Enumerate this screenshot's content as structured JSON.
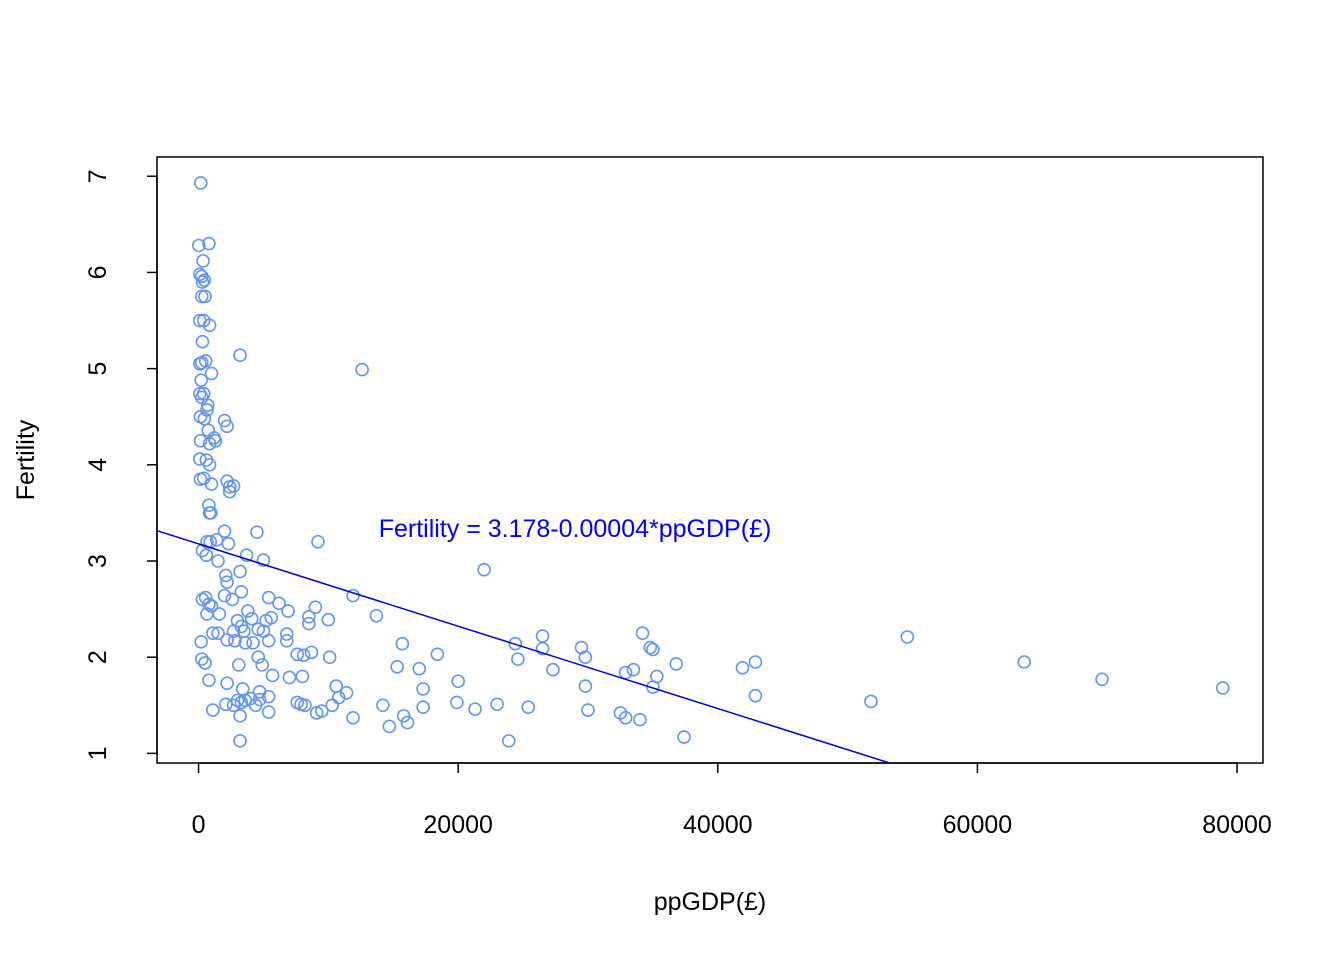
{
  "chart_data": {
    "type": "scatter",
    "title": "",
    "xlabel": "ppGDP(£)",
    "ylabel": "Fertility",
    "xlim": [
      -3200,
      82000
    ],
    "ylim": [
      0.9,
      7.2
    ],
    "xticks": [
      0,
      20000,
      40000,
      60000,
      80000
    ],
    "yticks": [
      1,
      2,
      3,
      4,
      5,
      6,
      7
    ],
    "xtick_labels": [
      "0",
      "20000",
      "40000",
      "60000",
      "80000"
    ],
    "ytick_labels": [
      "1",
      "2",
      "3",
      "4",
      "5",
      "6",
      "7"
    ],
    "grid": false,
    "point_color": "#6495ED",
    "line_color": "#0000CD",
    "annotation": {
      "text": "Fertility = 3.178-0.00004*ppGDP(£)",
      "color": "#0000FF",
      "x": 29000,
      "y": 3.25
    },
    "regression": {
      "intercept": 3.178,
      "slope": -4.28e-05
    },
    "points": [
      [
        170,
        6.93
      ],
      [
        20,
        6.28
      ],
      [
        800,
        6.3
      ],
      [
        350,
        6.12
      ],
      [
        100,
        5.98
      ],
      [
        250,
        5.96
      ],
      [
        450,
        5.92
      ],
      [
        300,
        5.9
      ],
      [
        250,
        5.75
      ],
      [
        500,
        5.75
      ],
      [
        100,
        5.5
      ],
      [
        400,
        5.5
      ],
      [
        850,
        5.45
      ],
      [
        300,
        5.28
      ],
      [
        3200,
        5.14
      ],
      [
        12600,
        4.99
      ],
      [
        100,
        5.05
      ],
      [
        250,
        5.06
      ],
      [
        550,
        5.08
      ],
      [
        1000,
        4.95
      ],
      [
        200,
        4.88
      ],
      [
        100,
        4.74
      ],
      [
        400,
        4.74
      ],
      [
        250,
        4.7
      ],
      [
        700,
        4.62
      ],
      [
        650,
        4.57
      ],
      [
        150,
        4.5
      ],
      [
        450,
        4.48
      ],
      [
        2000,
        4.46
      ],
      [
        2200,
        4.4
      ],
      [
        750,
        4.36
      ],
      [
        150,
        4.25
      ],
      [
        850,
        4.22
      ],
      [
        1200,
        4.28
      ],
      [
        1300,
        4.25
      ],
      [
        600,
        4.05
      ],
      [
        100,
        4.06
      ],
      [
        850,
        4.0
      ],
      [
        150,
        3.85
      ],
      [
        400,
        3.86
      ],
      [
        1000,
        3.8
      ],
      [
        2200,
        3.83
      ],
      [
        2400,
        3.77
      ],
      [
        2700,
        3.78
      ],
      [
        2400,
        3.72
      ],
      [
        800,
        3.58
      ],
      [
        850,
        3.5
      ],
      [
        950,
        3.5
      ],
      [
        4500,
        3.3
      ],
      [
        2000,
        3.31
      ],
      [
        9200,
        3.2
      ],
      [
        650,
        3.2
      ],
      [
        900,
        3.2
      ],
      [
        1400,
        3.22
      ],
      [
        2300,
        3.18
      ],
      [
        300,
        3.11
      ],
      [
        600,
        3.06
      ],
      [
        3700,
        3.06
      ],
      [
        5000,
        3.01
      ],
      [
        1500,
        3.0
      ],
      [
        22000,
        2.91
      ],
      [
        3200,
        2.89
      ],
      [
        2100,
        2.85
      ],
      [
        2200,
        2.78
      ],
      [
        3300,
        2.68
      ],
      [
        11900,
        2.64
      ],
      [
        2000,
        2.64
      ],
      [
        2600,
        2.6
      ],
      [
        300,
        2.6
      ],
      [
        550,
        2.62
      ],
      [
        5400,
        2.62
      ],
      [
        6200,
        2.56
      ],
      [
        800,
        2.55
      ],
      [
        1000,
        2.53
      ],
      [
        9000,
        2.52
      ],
      [
        3800,
        2.48
      ],
      [
        6900,
        2.48
      ],
      [
        650,
        2.45
      ],
      [
        1600,
        2.45
      ],
      [
        13700,
        2.43
      ],
      [
        4100,
        2.4
      ],
      [
        5600,
        2.41
      ],
      [
        8500,
        2.42
      ],
      [
        10000,
        2.39
      ],
      [
        3000,
        2.38
      ],
      [
        3300,
        2.32
      ],
      [
        5200,
        2.38
      ],
      [
        8500,
        2.35
      ],
      [
        3500,
        2.27
      ],
      [
        4600,
        2.29
      ],
      [
        5000,
        2.27
      ],
      [
        1100,
        2.25
      ],
      [
        1500,
        2.25
      ],
      [
        2700,
        2.27
      ],
      [
        6800,
        2.24
      ],
      [
        34200,
        2.25
      ],
      [
        26500,
        2.22
      ],
      [
        6800,
        2.17
      ],
      [
        2200,
        2.18
      ],
      [
        2800,
        2.17
      ],
      [
        3600,
        2.15
      ],
      [
        4200,
        2.15
      ],
      [
        5400,
        2.17
      ],
      [
        200,
        2.16
      ],
      [
        15700,
        2.14
      ],
      [
        24400,
        2.14
      ],
      [
        29500,
        2.1
      ],
      [
        34800,
        2.1
      ],
      [
        35000,
        2.08
      ],
      [
        54600,
        2.21
      ],
      [
        26500,
        2.09
      ],
      [
        8700,
        2.05
      ],
      [
        7600,
        2.03
      ],
      [
        8100,
        2.02
      ],
      [
        10100,
        2.0
      ],
      [
        18400,
        2.03
      ],
      [
        4600,
        2.0
      ],
      [
        29800,
        2.0
      ],
      [
        24600,
        1.98
      ],
      [
        250,
        1.98
      ],
      [
        500,
        1.94
      ],
      [
        3100,
        1.92
      ],
      [
        4900,
        1.92
      ],
      [
        15300,
        1.9
      ],
      [
        36800,
        1.93
      ],
      [
        42900,
        1.95
      ],
      [
        63600,
        1.95
      ],
      [
        41900,
        1.89
      ],
      [
        17000,
        1.88
      ],
      [
        27300,
        1.87
      ],
      [
        33500,
        1.87
      ],
      [
        32900,
        1.84
      ],
      [
        35300,
        1.8
      ],
      [
        5700,
        1.81
      ],
      [
        7000,
        1.79
      ],
      [
        8000,
        1.8
      ],
      [
        800,
        1.76
      ],
      [
        2200,
        1.73
      ],
      [
        69600,
        1.77
      ],
      [
        20000,
        1.75
      ],
      [
        3400,
        1.67
      ],
      [
        10600,
        1.7
      ],
      [
        4700,
        1.64
      ],
      [
        11400,
        1.63
      ],
      [
        17300,
        1.67
      ],
      [
        29800,
        1.7
      ],
      [
        35000,
        1.69
      ],
      [
        78900,
        1.68
      ],
      [
        5400,
        1.59
      ],
      [
        10800,
        1.58
      ],
      [
        42900,
        1.6
      ],
      [
        3000,
        1.55
      ],
      [
        3600,
        1.55
      ],
      [
        4000,
        1.57
      ],
      [
        4700,
        1.56
      ],
      [
        7600,
        1.53
      ],
      [
        19900,
        1.53
      ],
      [
        51800,
        1.54
      ],
      [
        2100,
        1.51
      ],
      [
        2700,
        1.5
      ],
      [
        3300,
        1.53
      ],
      [
        4400,
        1.5
      ],
      [
        7900,
        1.51
      ],
      [
        8200,
        1.5
      ],
      [
        9100,
        1.42
      ],
      [
        9500,
        1.44
      ],
      [
        10300,
        1.5
      ],
      [
        14200,
        1.5
      ],
      [
        17300,
        1.48
      ],
      [
        21300,
        1.46
      ],
      [
        23000,
        1.51
      ],
      [
        25400,
        1.48
      ],
      [
        30000,
        1.45
      ],
      [
        32500,
        1.42
      ],
      [
        1100,
        1.45
      ],
      [
        5400,
        1.43
      ],
      [
        11900,
        1.37
      ],
      [
        15800,
        1.39
      ],
      [
        16100,
        1.32
      ],
      [
        14700,
        1.28
      ],
      [
        32900,
        1.37
      ],
      [
        34000,
        1.35
      ],
      [
        3200,
        1.39
      ],
      [
        3200,
        1.13
      ],
      [
        23900,
        1.13
      ],
      [
        37400,
        1.17
      ]
    ]
  }
}
